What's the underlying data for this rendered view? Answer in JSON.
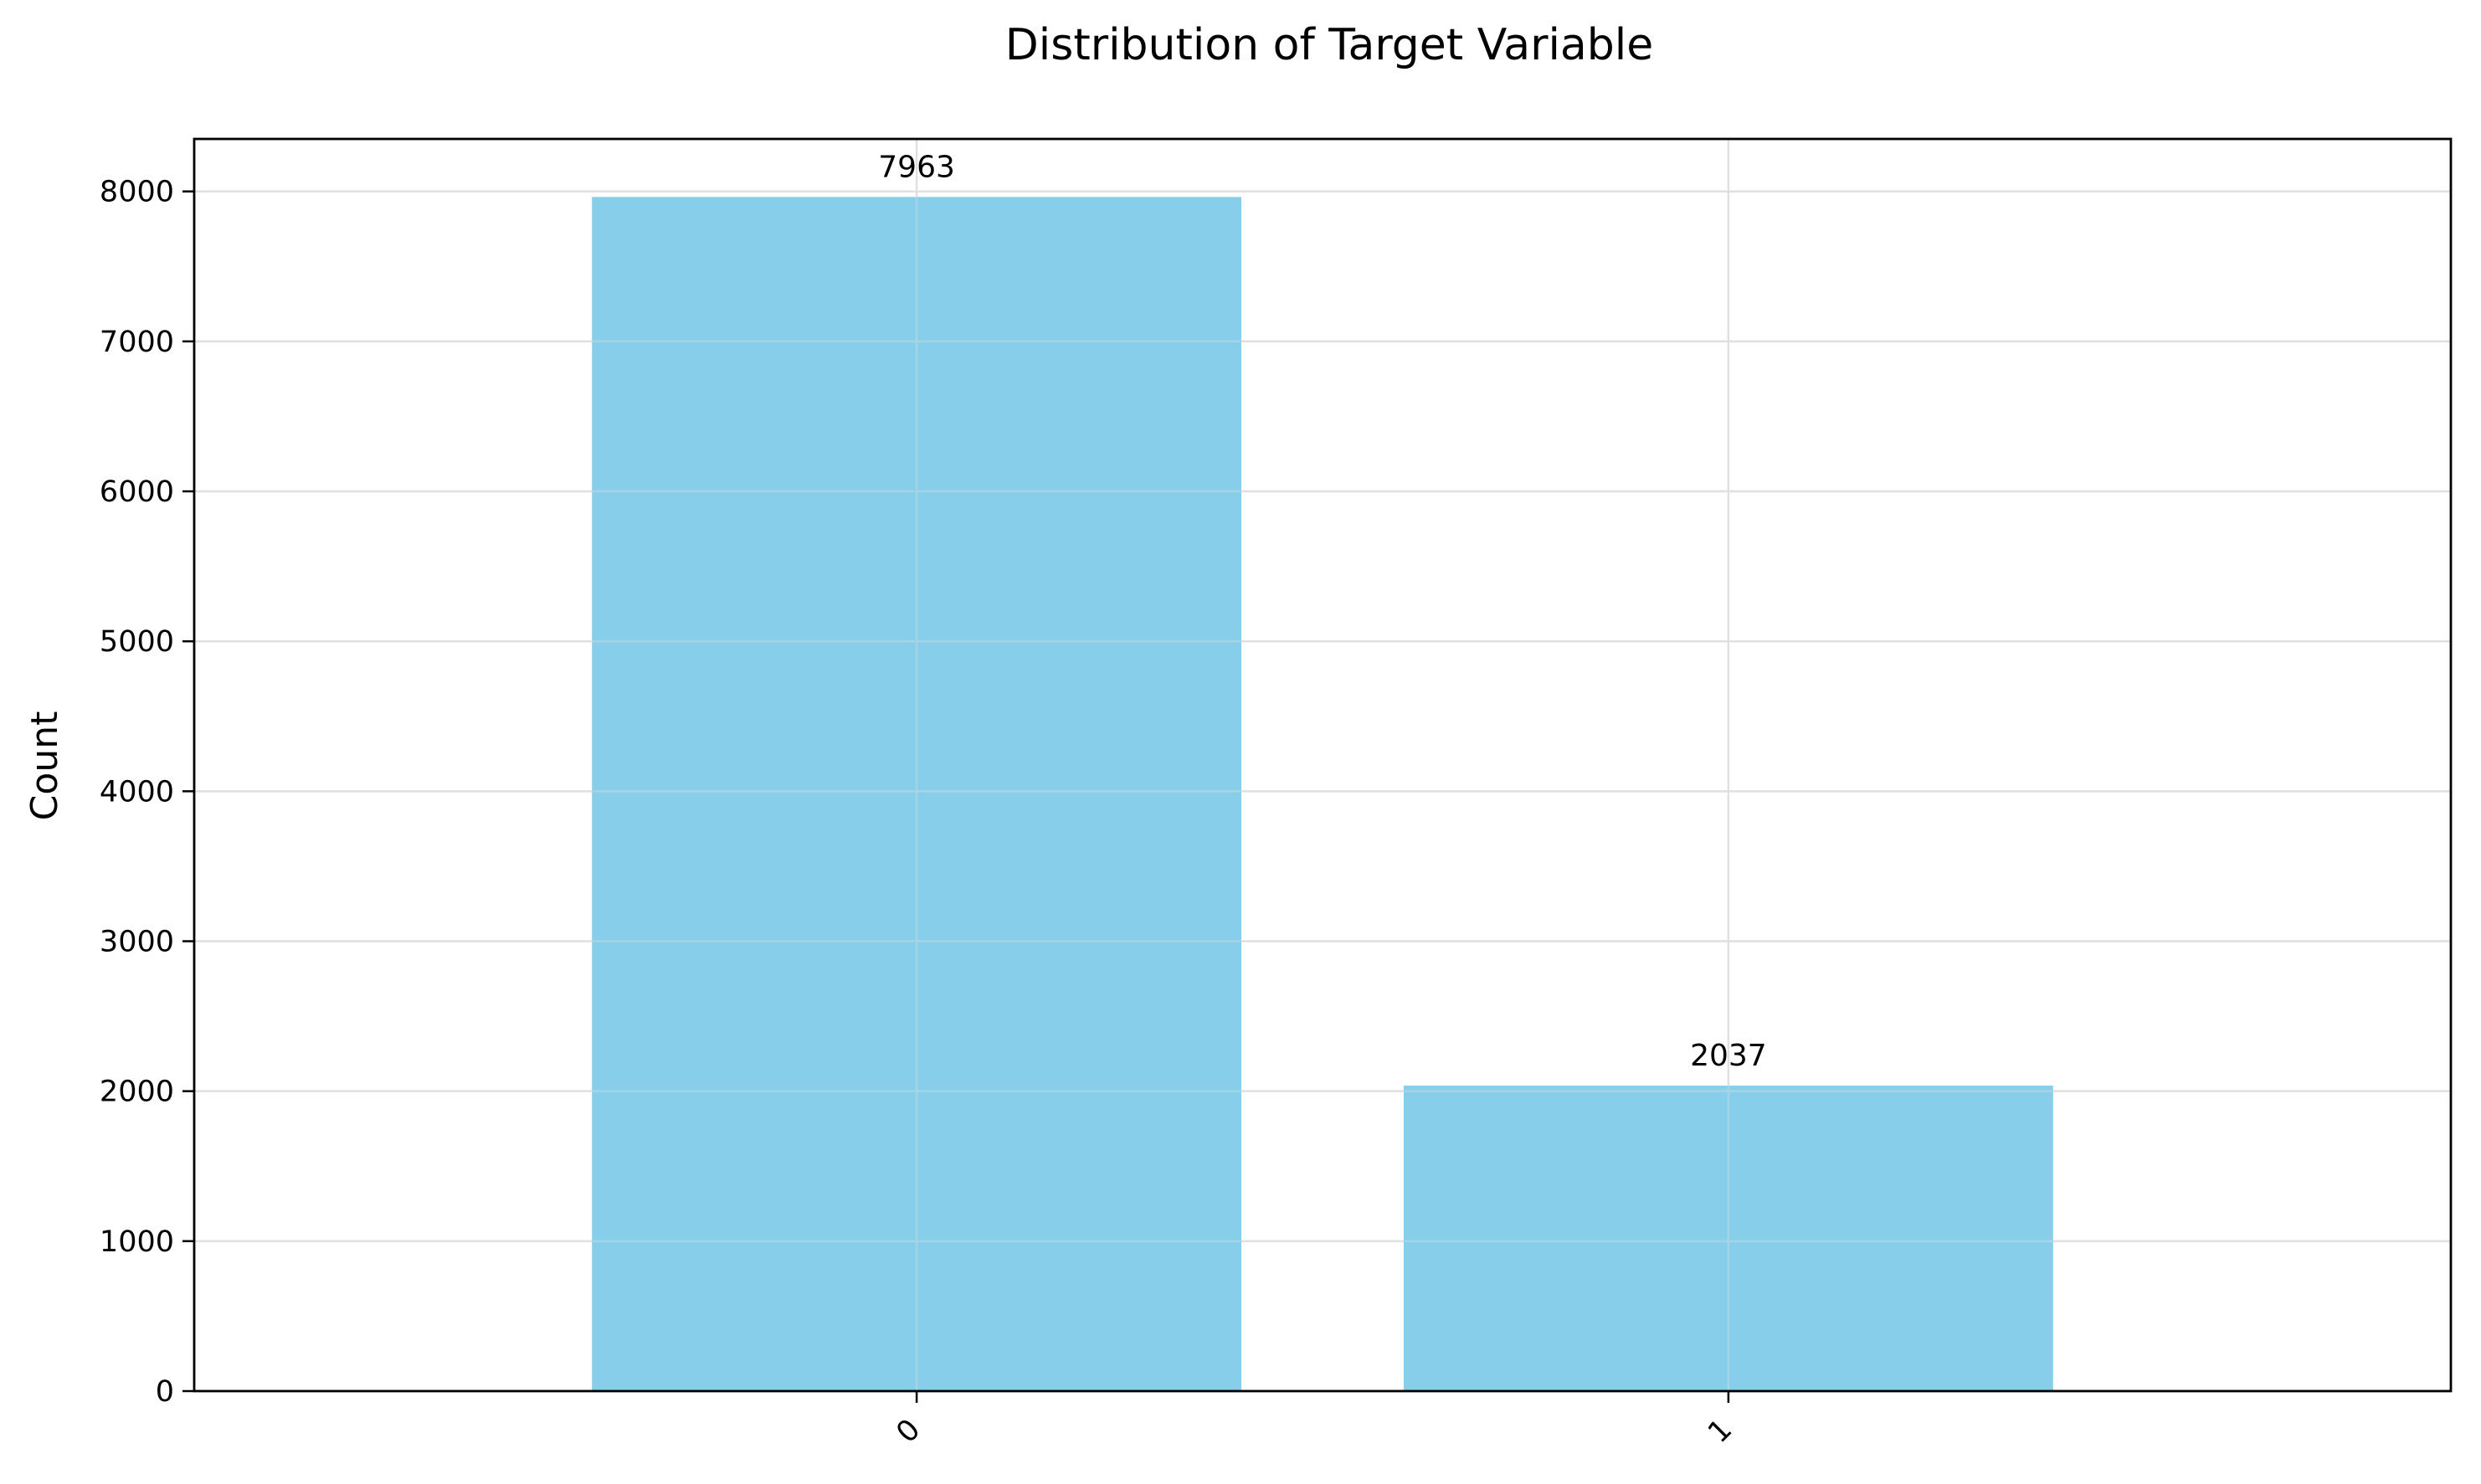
{
  "chart_data": {
    "type": "bar",
    "title": "Distribution of Target Variable",
    "xlabel": "",
    "ylabel": "Count",
    "categories": [
      "0",
      "1"
    ],
    "values": [
      7963,
      2037
    ],
    "data_labels": [
      "7963",
      "2037"
    ],
    "ylim": [
      0,
      8350
    ],
    "yticks": [
      0,
      1000,
      2000,
      3000,
      4000,
      5000,
      6000,
      7000,
      8000
    ],
    "ytick_labels": [
      "0",
      "1000",
      "2000",
      "3000",
      "4000",
      "5000",
      "6000",
      "7000",
      "8000"
    ],
    "xtick_rotation_deg": 45,
    "grid": true,
    "legend": "none",
    "bar_color": "#87CEEB",
    "grid_color": "#e0e0e0"
  }
}
